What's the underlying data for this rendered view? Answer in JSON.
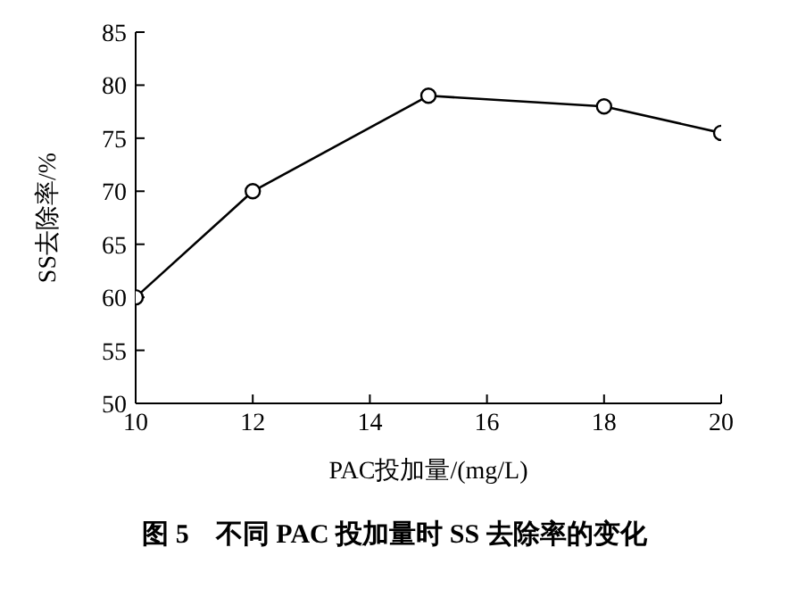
{
  "chart_data": {
    "type": "line",
    "title": "图 5　不同 PAC 投加量时 SS 去除率的变化",
    "xlabel": "PAC投加量/(mg/L)",
    "ylabel": "SS去除率/%",
    "x": [
      10,
      12,
      15,
      18,
      20
    ],
    "series": [
      {
        "color": "#000000",
        "values": [
          60,
          70,
          79,
          78,
          75.5
        ]
      }
    ],
    "xlim": [
      10,
      20
    ],
    "xticks": [
      10,
      12,
      14,
      16,
      18,
      20
    ],
    "ylim": [
      50,
      85
    ],
    "yticks": [
      50,
      55,
      60,
      65,
      70,
      75,
      80,
      85
    ],
    "grid": false,
    "legend": false,
    "marker": "circle",
    "line_style": "solid"
  }
}
